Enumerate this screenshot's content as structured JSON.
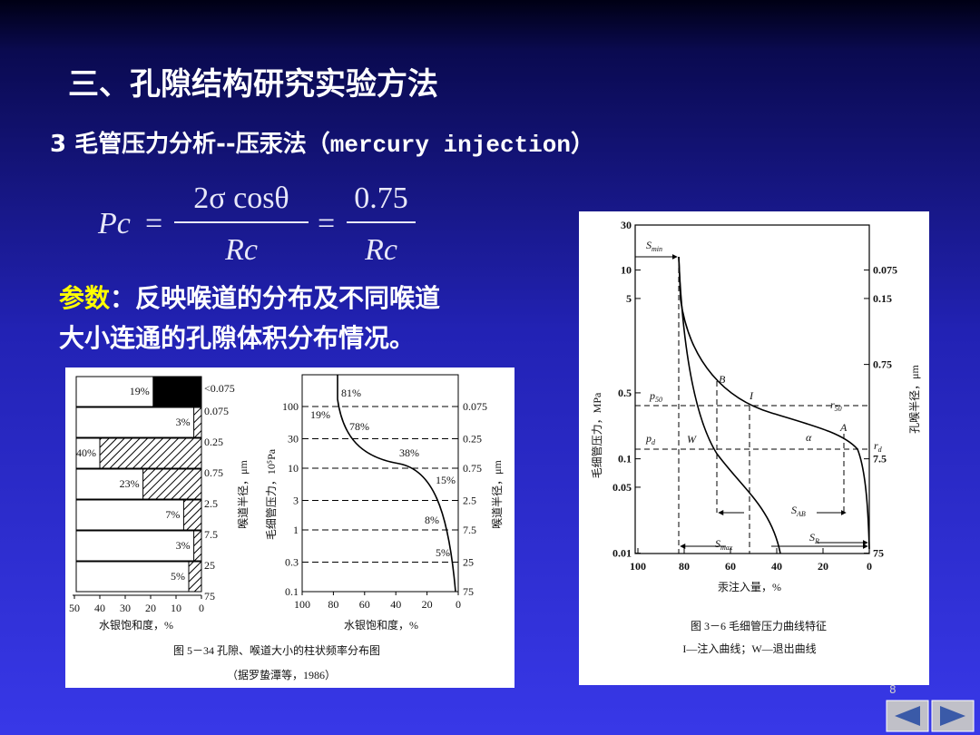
{
  "title": "三、孔隙结构研究实验方法",
  "subtitle": {
    "prefix": "3 毛管压力分析--压汞法（",
    "code": "mercury injection",
    "suffix": "）"
  },
  "formula": {
    "lhs": "Pc",
    "eq": "=",
    "num1": "2σ cosθ",
    "den1": "Rc",
    "num2": "0.75",
    "den2": "Rc"
  },
  "params": {
    "label": "参数",
    "lines": [
      "：反映喉道的分布及不同喉道",
      "大小连通的孔隙体积分布情况。"
    ]
  },
  "figure_534": {
    "histogram": {
      "bars": [
        {
          "value": 19,
          "label": "19%"
        },
        {
          "value": 3,
          "label": "3%"
        },
        {
          "value": 40,
          "label": "40%"
        },
        {
          "value": 23,
          "label": "23%"
        },
        {
          "value": 7,
          "label": "7%"
        },
        {
          "value": 3,
          "label": "3%"
        },
        {
          "value": 5,
          "label": "5%"
        }
      ],
      "radius_labels": [
        "<0.075",
        "0.075",
        "0.25",
        "0.75",
        "2.5",
        "7.5",
        "25",
        "75"
      ],
      "xticks": [
        50,
        40,
        30,
        20,
        10,
        0
      ],
      "xlabel": "水银饱和度，%",
      "ylabel": "喉道半径，μm"
    },
    "curve": {
      "yticks": [
        100,
        30,
        10,
        3,
        1,
        0.3,
        0.1
      ],
      "radius_labels": [
        "0.075",
        "0.25",
        "0.75",
        "2.5",
        "7.5",
        "25",
        "75"
      ],
      "xticks": [
        100,
        80,
        60,
        40,
        20,
        0
      ],
      "ylabel": "毛细管压力，10⁵Pa",
      "right_label": "喉道半径，μm",
      "xlabel": "水银饱和度，%",
      "annotations": [
        "81%",
        "19%",
        "78%",
        "38%",
        "15%",
        "8%",
        "5%"
      ]
    },
    "caption": "图 5－34   孔隙、喉道大小的柱状频率分布图",
    "source": "（据罗蛰潭等，1986）"
  },
  "figure_36": {
    "yticks": [
      30,
      10,
      5,
      0.5,
      0.1,
      0.05,
      0.01
    ],
    "radius_ticks": [
      0.075,
      0.15,
      0.75,
      7.5,
      75
    ],
    "xticks": [
      100,
      80,
      60,
      40,
      20,
      0
    ],
    "ylabel": "毛细管压力，MPa",
    "right_label": "孔喉半径，μm",
    "xlabel": "汞注入量，%",
    "annotations": [
      {
        "text": "S",
        "sub": "min"
      },
      {
        "text": "p",
        "sub": "50"
      },
      {
        "text": "p",
        "sub": "d"
      },
      {
        "text": "B"
      },
      {
        "text": "I"
      },
      {
        "text": "W"
      },
      {
        "text": "A"
      },
      {
        "text": "α"
      },
      {
        "text": "r",
        "sub": "50"
      },
      {
        "text": "r",
        "sub": "d"
      },
      {
        "text": "S",
        "sub": "AB"
      },
      {
        "text": "S",
        "sub": "R"
      },
      {
        "text": "S",
        "sub": "max"
      }
    ],
    "caption": "图 3－6   毛细管压力曲线特征",
    "legend": "I—注入曲线；W—退出曲线"
  },
  "page_number": "8"
}
